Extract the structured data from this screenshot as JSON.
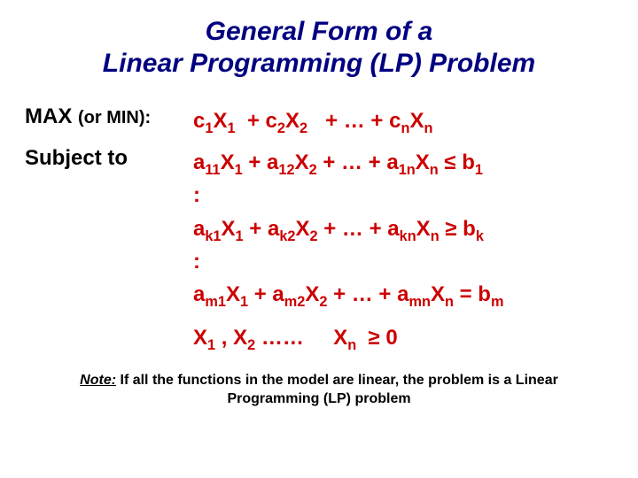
{
  "colors": {
    "title": "#000080",
    "label": "#000000",
    "expression": "#cc0000",
    "note": "#000000",
    "background": "#ffffff"
  },
  "title": {
    "line1": "General Form of a",
    "line2": "Linear Programming (LP) Problem"
  },
  "objective": {
    "label_main": "MAX ",
    "label_paren": "(or MIN):",
    "expr_html": "c<sub>1</sub>X<sub>1</sub>&nbsp; + c<sub>2</sub>X<sub>2</sub>&nbsp;&nbsp; + … + c<sub>n</sub>X<sub>n</sub>"
  },
  "subject": {
    "label": "Subject to",
    "lines_html": [
      "a<sub>11</sub>X<sub>1</sub> + a<sub>12</sub>X<sub>2</sub> + … + a<sub>1n</sub>X<sub>n</sub> ≤ b<sub>1</sub>",
      ":",
      "a<sub>k1</sub>X<sub>1</sub> + a<sub>k2</sub>X<sub>2</sub> + … + a<sub>kn</sub>X<sub>n</sub> ≥ b<sub>k</sub>",
      ":",
      "a<sub>m1</sub>X<sub>1</sub> + a<sub>m2</sub>X<sub>2</sub> + … + a<sub>mn</sub>X<sub>n</sub> = b<sub>m</sub>"
    ]
  },
  "nonneg": {
    "expr_html": "X<sub>1</sub> , X<sub>2</sub> ……&nbsp;&nbsp;&nbsp;&nbsp; X<sub>n</sub>&nbsp; ≥ 0"
  },
  "note": {
    "prefix": "Note:",
    "rest": " If all the functions in the model are linear, the problem is a Linear Programming (LP) problem"
  }
}
